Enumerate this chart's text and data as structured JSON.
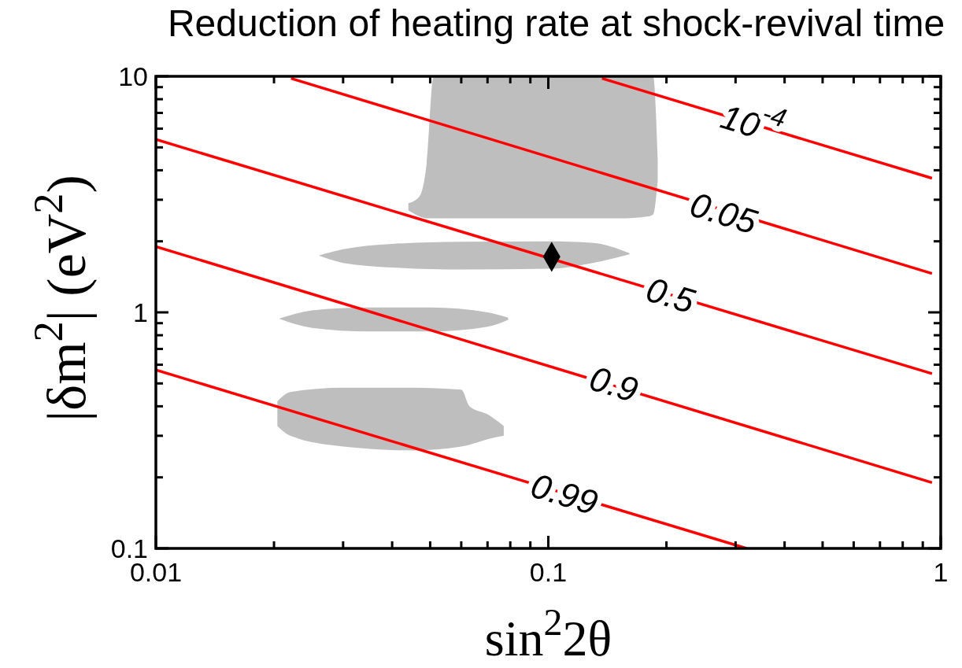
{
  "chart_data": {
    "type": "line",
    "title": "Reduction of heating rate at shock-revival time",
    "xlabel": "sin$^{2}$2θ",
    "ylabel": "|δm$^{2}$| (eV$^{2}$)",
    "log": "xy",
    "xlim": [
      0.01,
      1
    ],
    "ylim": [
      0.1,
      10
    ],
    "xticks": [
      0.01,
      {
        "value": 0.02,
        "label": null
      },
      {
        "value": 0.03,
        "label": null
      },
      {
        "value": 0.04,
        "label": null
      },
      {
        "value": 0.05,
        "label": null
      },
      {
        "value": 0.06,
        "label": null
      },
      {
        "value": 0.07,
        "label": null
      },
      {
        "value": 0.08,
        "label": null
      },
      {
        "value": 0.09,
        "label": null
      },
      0.1,
      {
        "value": 0.2,
        "label": null
      },
      {
        "value": 0.3,
        "label": null
      },
      {
        "value": 0.4,
        "label": null
      },
      {
        "value": 0.5,
        "label": null
      },
      {
        "value": 0.6,
        "label": null
      },
      {
        "value": 0.7,
        "label": null
      },
      {
        "value": 0.8,
        "label": null
      },
      {
        "value": 0.9,
        "label": null
      },
      1
    ],
    "yticks": [
      0.1,
      {
        "value": 0.2,
        "label": null
      },
      {
        "value": 0.3,
        "label": null
      },
      {
        "value": 0.4,
        "label": null
      },
      {
        "value": 0.5,
        "label": null
      },
      {
        "value": 0.6,
        "label": null
      },
      {
        "value": 0.7,
        "label": null
      },
      {
        "value": 0.8,
        "label": null
      },
      {
        "value": 0.9,
        "label": null
      },
      1,
      {
        "value": 2,
        "label": null
      },
      {
        "value": 3,
        "label": null
      },
      {
        "value": 4,
        "label": null
      },
      {
        "value": 5,
        "label": null
      },
      {
        "value": 6,
        "label": null
      },
      {
        "value": 7,
        "label": null
      },
      {
        "value": 8,
        "label": null
      },
      {
        "value": 9,
        "label": null
      },
      10
    ],
    "series": [
      {
        "type": "area",
        "color": "#bebebe",
        "x": [
          0.044,
          0.047,
          0.049,
          0.051,
          0.1,
          0.15,
          0.18,
          0.185,
          0.19
        ],
        "values": [
          null,
          null,
          null,
          null,
          null,
          null,
          null,
          null,
          null
        ],
        "upper": [
          2.9,
          3.1,
          4.3,
          10,
          10,
          10,
          10,
          10,
          4.4
        ],
        "lower": [
          2.7,
          2.55,
          2.5,
          2.5,
          2.5,
          2.5,
          2.55,
          2.6,
          3.6
        ]
      },
      {
        "type": "area",
        "color": "#bebebe",
        "x": [
          0.026,
          0.03,
          0.04,
          0.06,
          0.1,
          0.13,
          0.161
        ],
        "values": [
          null,
          null,
          null,
          null,
          null,
          null,
          null
        ],
        "upper": [
          1.74,
          1.85,
          1.95,
          1.99,
          2.0,
          1.97,
          1.78
        ],
        "lower": [
          1.74,
          1.62,
          1.55,
          1.52,
          1.53,
          1.62,
          1.76
        ]
      },
      {
        "type": "area",
        "color": "#bebebe",
        "x": [
          0.0206,
          0.025,
          0.035,
          0.05,
          0.07,
          0.079
        ],
        "values": [
          null,
          null,
          null,
          null,
          null,
          null
        ],
        "upper": [
          0.94,
          1.02,
          1.05,
          1.05,
          1.0,
          0.95
        ],
        "lower": [
          0.94,
          0.86,
          0.83,
          0.83,
          0.87,
          0.93
        ]
      },
      {
        "type": "area",
        "color": "#bebebe",
        "x": [
          0.0204,
          0.022,
          0.03,
          0.045,
          0.06,
          0.063,
          0.07,
          0.077
        ],
        "values": [
          null,
          null,
          null,
          null,
          null,
          null,
          null,
          null
        ],
        "upper": [
          0.42,
          0.46,
          0.48,
          0.48,
          0.47,
          0.4,
          0.37,
          0.33
        ],
        "lower": [
          0.33,
          0.3,
          0.27,
          0.26,
          0.27,
          0.275,
          0.29,
          0.3
        ]
      },
      {
        "type": "line",
        "color": "#ff0000",
        "x": [
          0.137,
          0.95
        ],
        "values": [
          9.8,
          3.7
        ]
      },
      {
        "type": "line",
        "color": "#ff0000",
        "x": [
          0.0221,
          0.95
        ],
        "values": [
          9.8,
          1.46
        ]
      },
      {
        "type": "line",
        "color": "#ff0000",
        "x": [
          0.01,
          0.95
        ],
        "values": [
          5.4,
          0.55
        ]
      },
      {
        "type": "line",
        "color": "#ff0000",
        "x": [
          0.01,
          0.95
        ],
        "values": [
          1.9,
          0.19
        ]
      },
      {
        "type": "line",
        "color": "#ff0000",
        "x": [
          0.01,
          0.32
        ],
        "values": [
          0.57,
          0.1
        ]
      },
      {
        "type": "scatter",
        "color": "#000000",
        "marker": "diamond",
        "x": [
          0.102
        ],
        "values": [
          1.72
        ]
      }
    ],
    "annotations": [
      {
        "text": "10$^{-4}$",
        "x": 0.33,
        "y": 6.29
      },
      {
        "text": "0.05",
        "x": 0.28,
        "y": 2.65
      },
      {
        "text": "0.5",
        "x": 0.205,
        "y": 1.19
      },
      {
        "text": "0.9",
        "x": 0.147,
        "y": 0.5
      },
      {
        "text": "0.99",
        "x": 0.11,
        "y": 0.171
      }
    ]
  }
}
